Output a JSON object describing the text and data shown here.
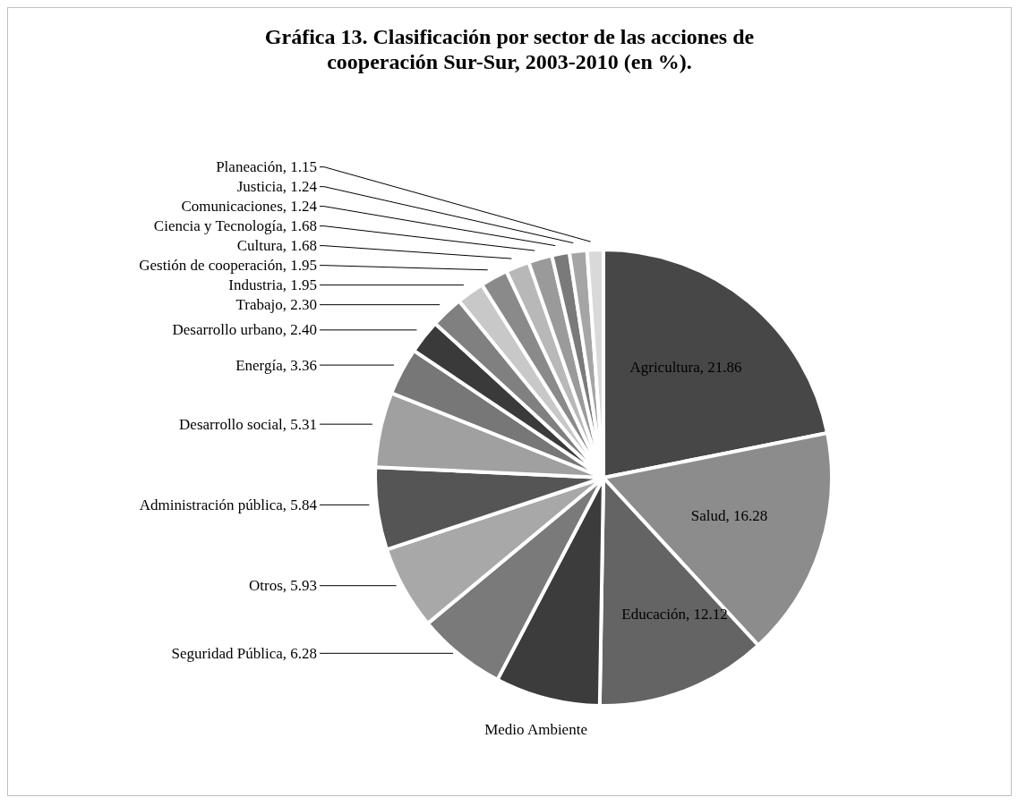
{
  "chart_data": {
    "type": "pie",
    "title": "Gráfica 13. Clasificación por sector de las acciones de cooperación Sur-Sur, 2003-2010 (en %).",
    "categories": [
      "Agricultura",
      "Salud",
      "Educación",
      "Medio Ambiente",
      "Seguridad Pública",
      "Otros",
      "Administración pública",
      "Desarrollo social",
      "Energía",
      "Desarrollo urbano",
      "Trabajo",
      "Industria",
      "Gestión de cooperación",
      "Cultura",
      "Ciencia y Tecnología",
      "Comunicaciones",
      "Justicia",
      "Planeación"
    ],
    "values": [
      21.86,
      16.28,
      12.12,
      7.43,
      6.28,
      5.93,
      5.84,
      5.31,
      3.36,
      2.4,
      2.3,
      1.95,
      1.95,
      1.68,
      1.68,
      1.24,
      1.24,
      1.15
    ],
    "value_labels": [
      "21.86",
      "16.28",
      "12.12",
      null,
      "6.28",
      "5.93",
      "5.84",
      "5.31",
      "3.36",
      "2.40",
      "2.30",
      "1.95",
      "1.95",
      "1.68",
      "1.68",
      "1.24",
      "1.24",
      "1.15"
    ],
    "colors": [
      "#474747",
      "#8c8c8c",
      "#646464",
      "#3c3c3c",
      "#7a7a7a",
      "#a8a8a8",
      "#555555",
      "#a0a0a0",
      "#777777",
      "#3a3a3a",
      "#808080",
      "#c8c8c8",
      "#8a8a8a",
      "#b8b8b8",
      "#9a9a9a",
      "#7a7a7a",
      "#a5a5a5",
      "#d9d9d9"
    ]
  }
}
